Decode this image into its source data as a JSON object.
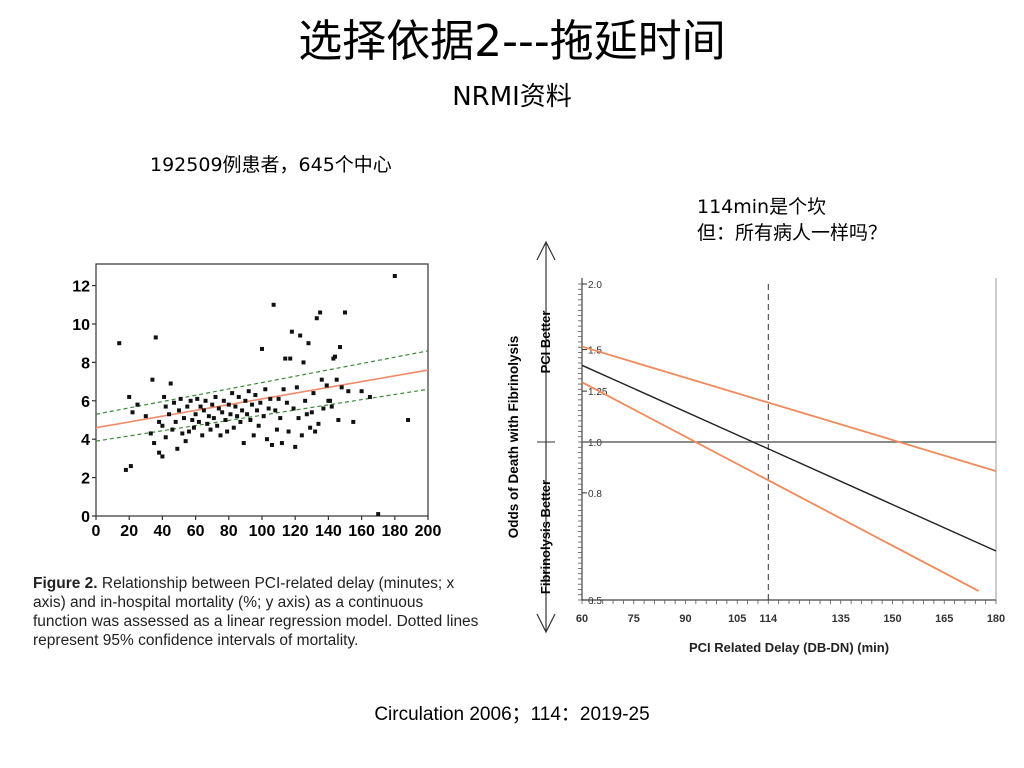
{
  "slide": {
    "title": "选择依据2---拖延时间",
    "subtitle": "NRMI资料",
    "note_patients": "192509例患者，645个中心",
    "note_threshold_line1": "114min是个坎",
    "note_threshold_line2": "但：所有病人一样吗？",
    "citation": "Circulation 2006；114：2019-25"
  },
  "caption": {
    "label": "Figure 2.",
    "text": "Relationship between PCI-related delay (minutes; x axis) and in-hospital mortality (%; y axis) as a continuous function was assessed as a linear regression model. Dotted lines represent 95% confidence intervals of mortality."
  },
  "colors": {
    "regression": "#f08a6a",
    "confidence": "#3a8a3a",
    "points": "#111111",
    "ci_band": "#f08a5a",
    "estimate": "#222222"
  },
  "chart_data": [
    {
      "type": "scatter",
      "xlim": [
        0,
        200
      ],
      "ylim": [
        0,
        12.5
      ],
      "xticks": [
        0,
        20,
        40,
        60,
        80,
        100,
        120,
        140,
        160,
        180,
        200
      ],
      "yticks": [
        0,
        2,
        4,
        6,
        8,
        10,
        12
      ],
      "grid": false,
      "points": [
        [
          14,
          9
        ],
        [
          18,
          2.4
        ],
        [
          20,
          6.2
        ],
        [
          21,
          2.6
        ],
        [
          22,
          5.4
        ],
        [
          25,
          5.8
        ],
        [
          30,
          5.2
        ],
        [
          33,
          4.3
        ],
        [
          34,
          7.1
        ],
        [
          35,
          3.8
        ],
        [
          36,
          9.3
        ],
        [
          38,
          4.9
        ],
        [
          38,
          3.3
        ],
        [
          40,
          3.1
        ],
        [
          40,
          4.7
        ],
        [
          41,
          6.2
        ],
        [
          42,
          5.7
        ],
        [
          42,
          4.1
        ],
        [
          44,
          5.3
        ],
        [
          45,
          6.9
        ],
        [
          46,
          4.5
        ],
        [
          47,
          5.9
        ],
        [
          48,
          4.9
        ],
        [
          49,
          3.5
        ],
        [
          50,
          5.5
        ],
        [
          51,
          6.1
        ],
        [
          52,
          4.3
        ],
        [
          53,
          5.1
        ],
        [
          54,
          3.9
        ],
        [
          55,
          5.7
        ],
        [
          56,
          4.4
        ],
        [
          57,
          6.0
        ],
        [
          58,
          5.0
        ],
        [
          59,
          4.6
        ],
        [
          60,
          5.3
        ],
        [
          61,
          6.1
        ],
        [
          62,
          4.9
        ],
        [
          63,
          5.7
        ],
        [
          64,
          4.2
        ],
        [
          65,
          5.5
        ],
        [
          66,
          6.0
        ],
        [
          67,
          4.8
        ],
        [
          68,
          5.2
        ],
        [
          69,
          4.5
        ],
        [
          70,
          5.8
        ],
        [
          71,
          5.1
        ],
        [
          72,
          6.2
        ],
        [
          73,
          4.7
        ],
        [
          74,
          5.6
        ],
        [
          75,
          4.2
        ],
        [
          76,
          5.4
        ],
        [
          77,
          6.0
        ],
        [
          78,
          5.0
        ],
        [
          79,
          4.4
        ],
        [
          80,
          5.8
        ],
        [
          81,
          5.3
        ],
        [
          82,
          6.4
        ],
        [
          83,
          4.6
        ],
        [
          84,
          5.7
        ],
        [
          85,
          5.2
        ],
        [
          86,
          6.2
        ],
        [
          87,
          4.9
        ],
        [
          88,
          5.5
        ],
        [
          89,
          3.8
        ],
        [
          90,
          6.0
        ],
        [
          91,
          5.3
        ],
        [
          92,
          6.5
        ],
        [
          93,
          5.0
        ],
        [
          94,
          5.8
        ],
        [
          95,
          4.2
        ],
        [
          96,
          6.3
        ],
        [
          97,
          5.5
        ],
        [
          98,
          4.7
        ],
        [
          99,
          5.9
        ],
        [
          100,
          8.7
        ],
        [
          101,
          5.2
        ],
        [
          102,
          6.6
        ],
        [
          103,
          4.0
        ],
        [
          104,
          5.6
        ],
        [
          105,
          6.1
        ],
        [
          106,
          3.7
        ],
        [
          107,
          11.0
        ],
        [
          108,
          5.5
        ],
        [
          109,
          4.5
        ],
        [
          110,
          6.1
        ],
        [
          111,
          5.1
        ],
        [
          112,
          3.8
        ],
        [
          113,
          6.6
        ],
        [
          114,
          8.2
        ],
        [
          115,
          5.9
        ],
        [
          116,
          4.4
        ],
        [
          117,
          8.2
        ],
        [
          118,
          9.6
        ],
        [
          119,
          5.6
        ],
        [
          120,
          3.6
        ],
        [
          121,
          6.7
        ],
        [
          122,
          5.1
        ],
        [
          123,
          9.4
        ],
        [
          124,
          4.2
        ],
        [
          125,
          8.0
        ],
        [
          126,
          6.0
        ],
        [
          127,
          5.3
        ],
        [
          128,
          9.0
        ],
        [
          129,
          4.6
        ],
        [
          130,
          5.4
        ],
        [
          131,
          6.4
        ],
        [
          132,
          4.4
        ],
        [
          133,
          10.3
        ],
        [
          134,
          4.8
        ],
        [
          135,
          10.6
        ],
        [
          136,
          7.1
        ],
        [
          137,
          5.6
        ],
        [
          139,
          6.8
        ],
        [
          140,
          6.0
        ],
        [
          141,
          6.0
        ],
        [
          142,
          5.7
        ],
        [
          143,
          8.2
        ],
        [
          144,
          8.3
        ],
        [
          145,
          7.1
        ],
        [
          146,
          5.0
        ],
        [
          147,
          8.8
        ],
        [
          148,
          6.7
        ],
        [
          150,
          10.6
        ],
        [
          152,
          6.5
        ],
        [
          155,
          4.9
        ],
        [
          160,
          6.5
        ],
        [
          165,
          6.2
        ],
        [
          170,
          0.1
        ],
        [
          180,
          12.5
        ],
        [
          188,
          5.0
        ]
      ],
      "regression_line": [
        [
          0,
          4.6
        ],
        [
          200,
          7.6
        ]
      ],
      "ci_upper": [
        [
          0,
          5.3
        ],
        [
          200,
          8.6
        ]
      ],
      "ci_lower": [
        [
          0,
          3.9
        ],
        [
          200,
          6.6
        ]
      ]
    },
    {
      "type": "line",
      "xlabel": "PCI Related Delay (DB-DN) (min)",
      "ylabel": "Odds of Death with Fibrinolysis",
      "upper_region_label": "PCI Better",
      "lower_region_label": "Fibrinolysis Better",
      "xlim": [
        60,
        180
      ],
      "ylim": [
        0.5,
        2.0
      ],
      "log_y": true,
      "xticks": [
        60,
        75,
        90,
        105,
        114,
        135,
        150,
        165,
        180
      ],
      "yticks": [
        0.5,
        0.8,
        1.0,
        1.25,
        1.5,
        2.0
      ],
      "ytick_labels": [
        "0.5",
        "0.8",
        "1.0",
        "1.25",
        "1.5",
        "2.0"
      ],
      "reference_y": 1.0,
      "threshold_x": 114,
      "series": [
        {
          "role": "estimate",
          "x": [
            60,
            180
          ],
          "y": [
            1.4,
            0.62
          ]
        },
        {
          "role": "upper-ci",
          "x": [
            60,
            180
          ],
          "y": [
            1.52,
            0.88
          ]
        },
        {
          "role": "lower-ci",
          "x": [
            60,
            175
          ],
          "y": [
            1.3,
            0.52
          ]
        }
      ]
    }
  ]
}
